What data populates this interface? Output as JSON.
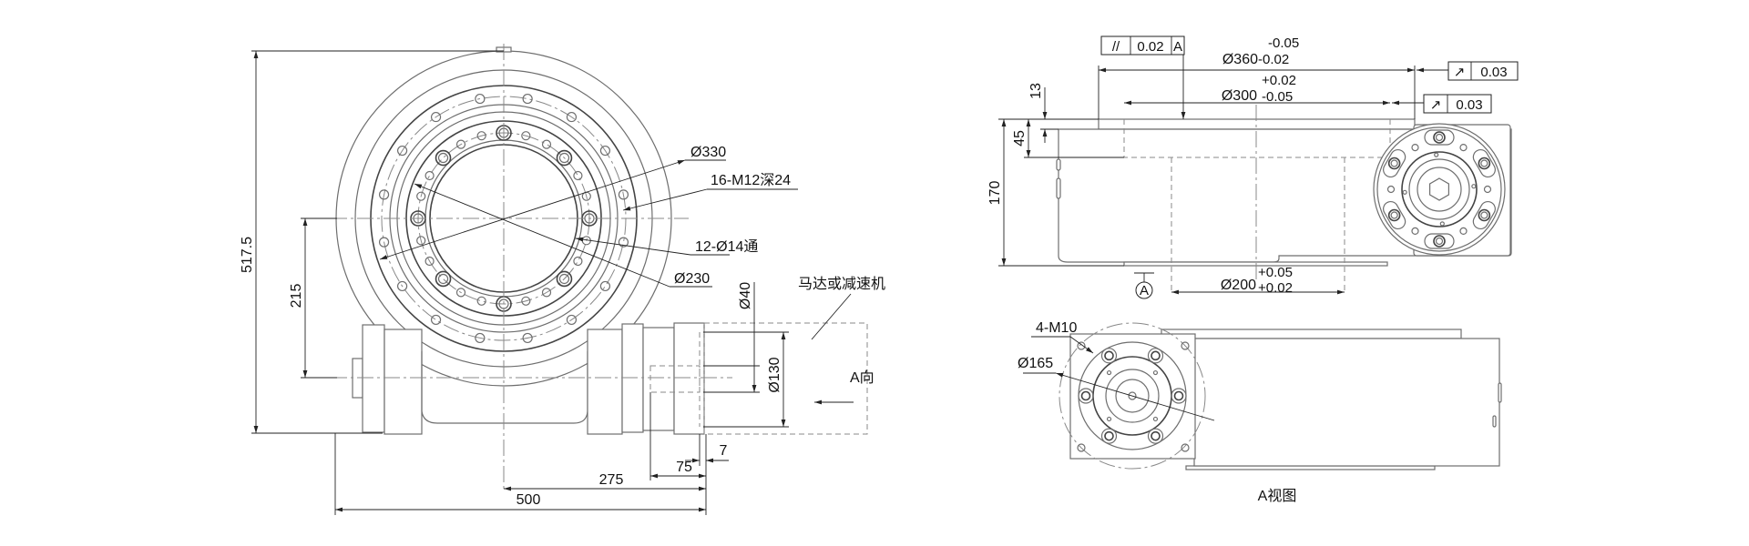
{
  "front_view": {
    "dims": {
      "overall_height": "517.5",
      "center_distance": "215",
      "overall_width": "500",
      "center_to_end": "275",
      "shaft_length": "75",
      "spigot": "7",
      "shaft_diameter": "Ø40",
      "spigot_diameter": "Ø130"
    },
    "callouts": {
      "outer_pcd": "Ø330",
      "tapped_holes": "16-M12深24",
      "through_holes": "12-Ø14通",
      "inner_pcd": "Ø230",
      "motor_note": "马达或减速机",
      "view_direction": "A向"
    }
  },
  "side_view": {
    "dims": {
      "overall_height": "170",
      "ring_height": "45",
      "step_height": "13",
      "d360": {
        "nominal": "Ø360",
        "upper": "-0.05",
        "lower": "-0.02"
      },
      "d300": {
        "nominal": "Ø300",
        "upper": "+0.02",
        "lower": "-0.05"
      },
      "d200": {
        "nominal": "Ø200",
        "upper": "+0.05",
        "lower": "+0.02"
      }
    },
    "tolerance_frames": {
      "parallelism": {
        "symbol": "//",
        "value": "0.02",
        "datum": "A"
      },
      "runout_1": {
        "symbol": "↗",
        "value": "0.03"
      },
      "runout_2": {
        "symbol": "↗",
        "value": "0.03"
      }
    },
    "datum_label": "A"
  },
  "a_view": {
    "title": "A视图",
    "callouts": {
      "mount_holes": "4-M10",
      "pcd": "Ø165"
    }
  },
  "colors": {
    "line": "#6e6e6e",
    "dimension": "#222222",
    "background": "#ffffff"
  }
}
